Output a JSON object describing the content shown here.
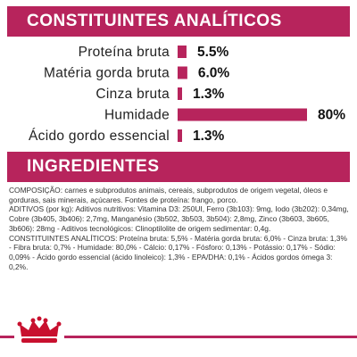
{
  "sections": {
    "analytic_title": "CONSTITUINTES ANALÍTICOS",
    "ingredients_title": "INGREDIENTES"
  },
  "chart_data": {
    "type": "bar",
    "orientation": "horizontal",
    "categories": [
      "Proteína bruta",
      "Matéria gorda bruta",
      "Cinza bruta",
      "Humidade",
      "Ácido gordo essencial"
    ],
    "values": [
      5.5,
      6.0,
      1.3,
      80,
      1.3
    ],
    "value_labels": [
      "5.5%",
      "6.0%",
      "1.3%",
      "80%",
      "1.3%"
    ],
    "unit": "%",
    "xlim": [
      0,
      80
    ],
    "bar_color": "#b7245c",
    "grid": false,
    "legend": "none"
  },
  "ingredients": {
    "composition": "COMPOSIÇÃO: carnes e subprodutos animais, cereais, subprodutos de origem vegetal, óleos e gorduras, sais minerais, açúcares. Fontes de proteína: frango, porco.",
    "additives": "ADITIVOS (por kg): Aditivos nutritivos: Vitamina D3: 250UI, Ferro (3b103): 9mg, Iodo (3b202): 0,34mg, Cobre (3b405, 3b406): 2,7mg, Manganésio (3b502, 3b503, 3b504): 2,8mg, Zinco (3b603, 3b605, 3b606): 28mg - Aditivos tecnológicos: Clinoptilolite de origem sedimentar: 0,4g.",
    "constituents": "CONSTITUINTES ANALÍTICOS: Proteína bruta: 5,5% - Matéria gorda bruta: 6,0% - Cinza bruta: 1,3% - Fibra bruta: 0,7% - Humidade: 80,0% - Cálcio: 0,17% - Fósforo: 0,13% - Potássio: 0,17% - Sódio: 0,09% - Ácido gordo essencial (ácido linoleico): 1,3% - EPA/DHA: 0,1% - Ácidos gordos ómega 3: 0,2%."
  },
  "footer": {
    "brand_color": "#b7245c",
    "logo_icon": "royal-crown-icon"
  }
}
